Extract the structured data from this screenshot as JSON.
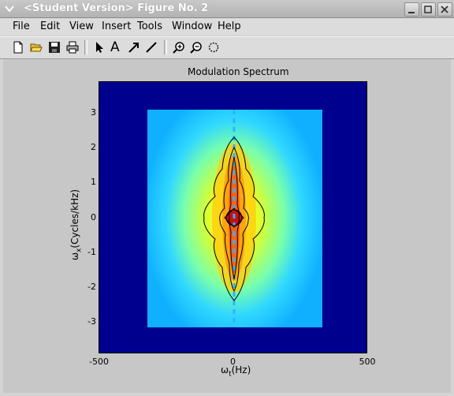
{
  "window": {
    "title": "<Student Version> Figure No. 2"
  },
  "menu": [
    {
      "label": "File",
      "key": "F"
    },
    {
      "label": "Edit",
      "key": "E"
    },
    {
      "label": "View",
      "key": "V"
    },
    {
      "label": "Insert",
      "key": "I"
    },
    {
      "label": "Tools",
      "key": "T"
    },
    {
      "label": "Window",
      "key": "W"
    },
    {
      "label": "Help",
      "key": "H"
    }
  ],
  "toolbar": {
    "icons": [
      "new-file-icon",
      "open-folder-icon",
      "save-icon",
      "print-icon",
      "select-arrow-icon",
      "text-insert-icon",
      "arrow-insert-icon",
      "line-insert-icon",
      "zoom-in-icon",
      "zoom-out-icon",
      "rotate-icon"
    ],
    "text_tool_glyph": "A"
  },
  "chart_data": {
    "type": "heatmap",
    "title": "Modulation Spectrum",
    "xlabel": "ω",
    "xlabel_sub": "t",
    "xlabel_unit": "(Hz)",
    "ylabel": "ω",
    "ylabel_sub": "x",
    "ylabel_unit": "(Cycles/kHz)",
    "xlim": [
      -500,
      500
    ],
    "ylim": [
      -3.9,
      3.9
    ],
    "xticks": [
      -500,
      0,
      500
    ],
    "yticks": [
      3,
      2,
      1,
      0,
      -1,
      -2,
      -3
    ],
    "data_extent": {
      "x": [
        -315,
        315
      ],
      "y": [
        -3.1,
        3.1
      ]
    },
    "colormap": "jet",
    "background_color": "#00008f",
    "peak": {
      "x": 0,
      "y": 0
    },
    "contour_color": "#000000"
  }
}
